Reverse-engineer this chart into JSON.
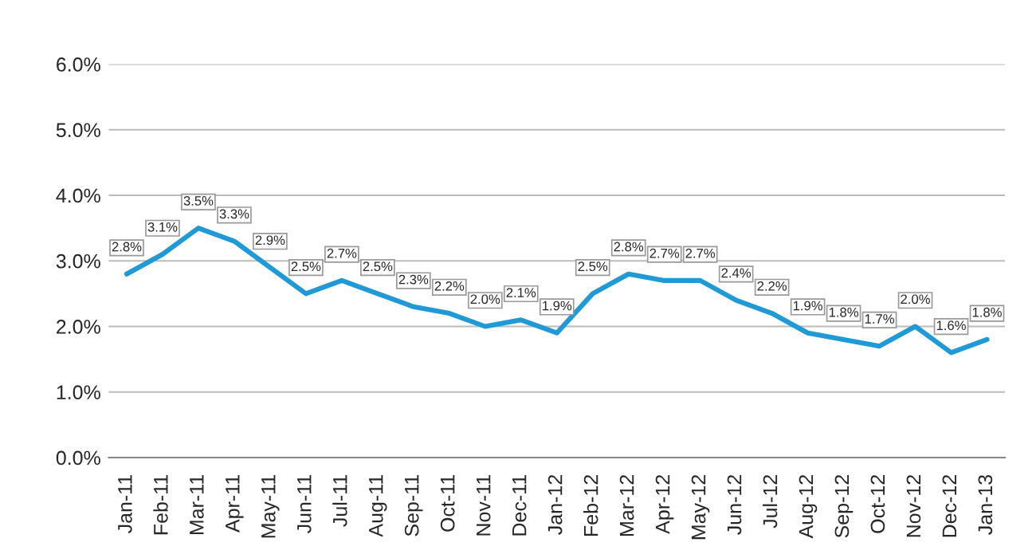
{
  "chart_data": {
    "type": "line",
    "categories": [
      "Jan-11",
      "Feb-11",
      "Mar-11",
      "Apr-11",
      "May-11",
      "Jun-11",
      "Jul-11",
      "Aug-11",
      "Sep-11",
      "Oct-11",
      "Nov-11",
      "Dec-11",
      "Jan-12",
      "Feb-12",
      "Mar-12",
      "Apr-12",
      "May-12",
      "Jun-12",
      "Jul-12",
      "Aug-12",
      "Sep-12",
      "Oct-12",
      "Nov-12",
      "Dec-12",
      "Jan-13"
    ],
    "series": [
      {
        "color": "#1f9ad6",
        "values": [
          2.8,
          3.1,
          3.5,
          3.3,
          2.9,
          2.5,
          2.7,
          2.5,
          2.3,
          2.2,
          2.0,
          2.1,
          1.9,
          2.5,
          2.8,
          2.7,
          2.7,
          2.4,
          2.2,
          1.9,
          1.8,
          1.7,
          2.0,
          1.6,
          1.8
        ],
        "value_labels": [
          "2.8%",
          "3.1%",
          "3.5%",
          "3.3%",
          "2.9%",
          "2.5%",
          "2.7%",
          "2.5%",
          "2.3%",
          "2.2%",
          "2.0%",
          "2.1%",
          "1.9%",
          "2.5%",
          "2.8%",
          "2.7%",
          "2.7%",
          "2.4%",
          "2.2%",
          "1.9%",
          "1.8%",
          "1.7%",
          "2.0%",
          "1.6%",
          "1.8%"
        ]
      }
    ],
    "ylim": [
      0,
      6
    ],
    "yticks": [
      {
        "value": 0,
        "label": "0.0%"
      },
      {
        "value": 1,
        "label": "1.0%"
      },
      {
        "value": 2,
        "label": "2.0%"
      },
      {
        "value": 3,
        "label": "3.0%"
      },
      {
        "value": 4,
        "label": "4.0%"
      },
      {
        "value": 5,
        "label": "5.0%"
      },
      {
        "value": 6,
        "label": "6.0%"
      }
    ],
    "grid": "y",
    "marker": "none",
    "line_style": "solid",
    "legend": false
  }
}
